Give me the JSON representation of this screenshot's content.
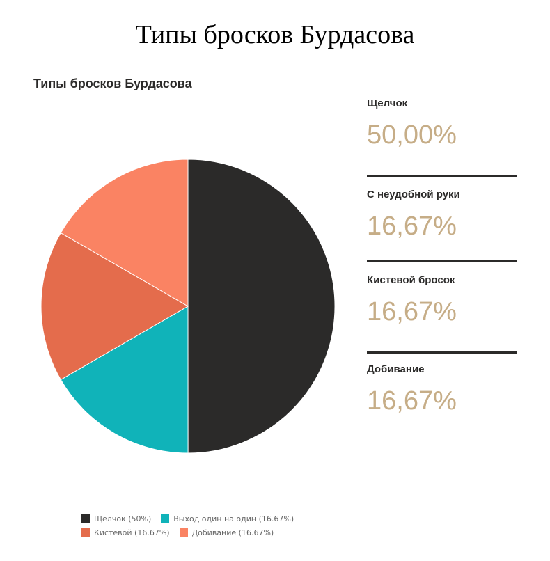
{
  "page_title": "Типы бросков Бурдасова",
  "chart_data": {
    "type": "pie",
    "title": "Типы бросков Бурдасова",
    "slices": [
      {
        "label": "Щелчок",
        "value": 50.0,
        "color": "#2b2a29"
      },
      {
        "label": "Выход один на один",
        "value": 16.67,
        "color": "#10b3b9"
      },
      {
        "label": "Кистевой",
        "value": 16.67,
        "color": "#e46c4c"
      },
      {
        "label": "Добивание",
        "value": 16.67,
        "color": "#fa8363"
      }
    ],
    "legend": {
      "placement": "bottom",
      "rows": [
        [
          {
            "text": "Щелчок (50%)",
            "color": "#2b2a29"
          },
          {
            "text": "Выход один на один (16.67%)",
            "color": "#10b3b9"
          }
        ],
        [
          {
            "text": "Кистевой (16.67%)",
            "color": "#e46c4c"
          },
          {
            "text": "Добивание (16.67%)",
            "color": "#fa8363"
          }
        ]
      ]
    }
  },
  "stats_panel": [
    {
      "label": "Щелчок",
      "value": "50,00%"
    },
    {
      "label": "С неудобной руки",
      "value": "16,67%"
    },
    {
      "label": "Кистевой бросок",
      "value": "16,67%"
    },
    {
      "label": "Добивание",
      "value": "16,67%"
    }
  ],
  "colors": {
    "accent_value": "#c6ad87",
    "text_dark": "#2b2a29"
  }
}
